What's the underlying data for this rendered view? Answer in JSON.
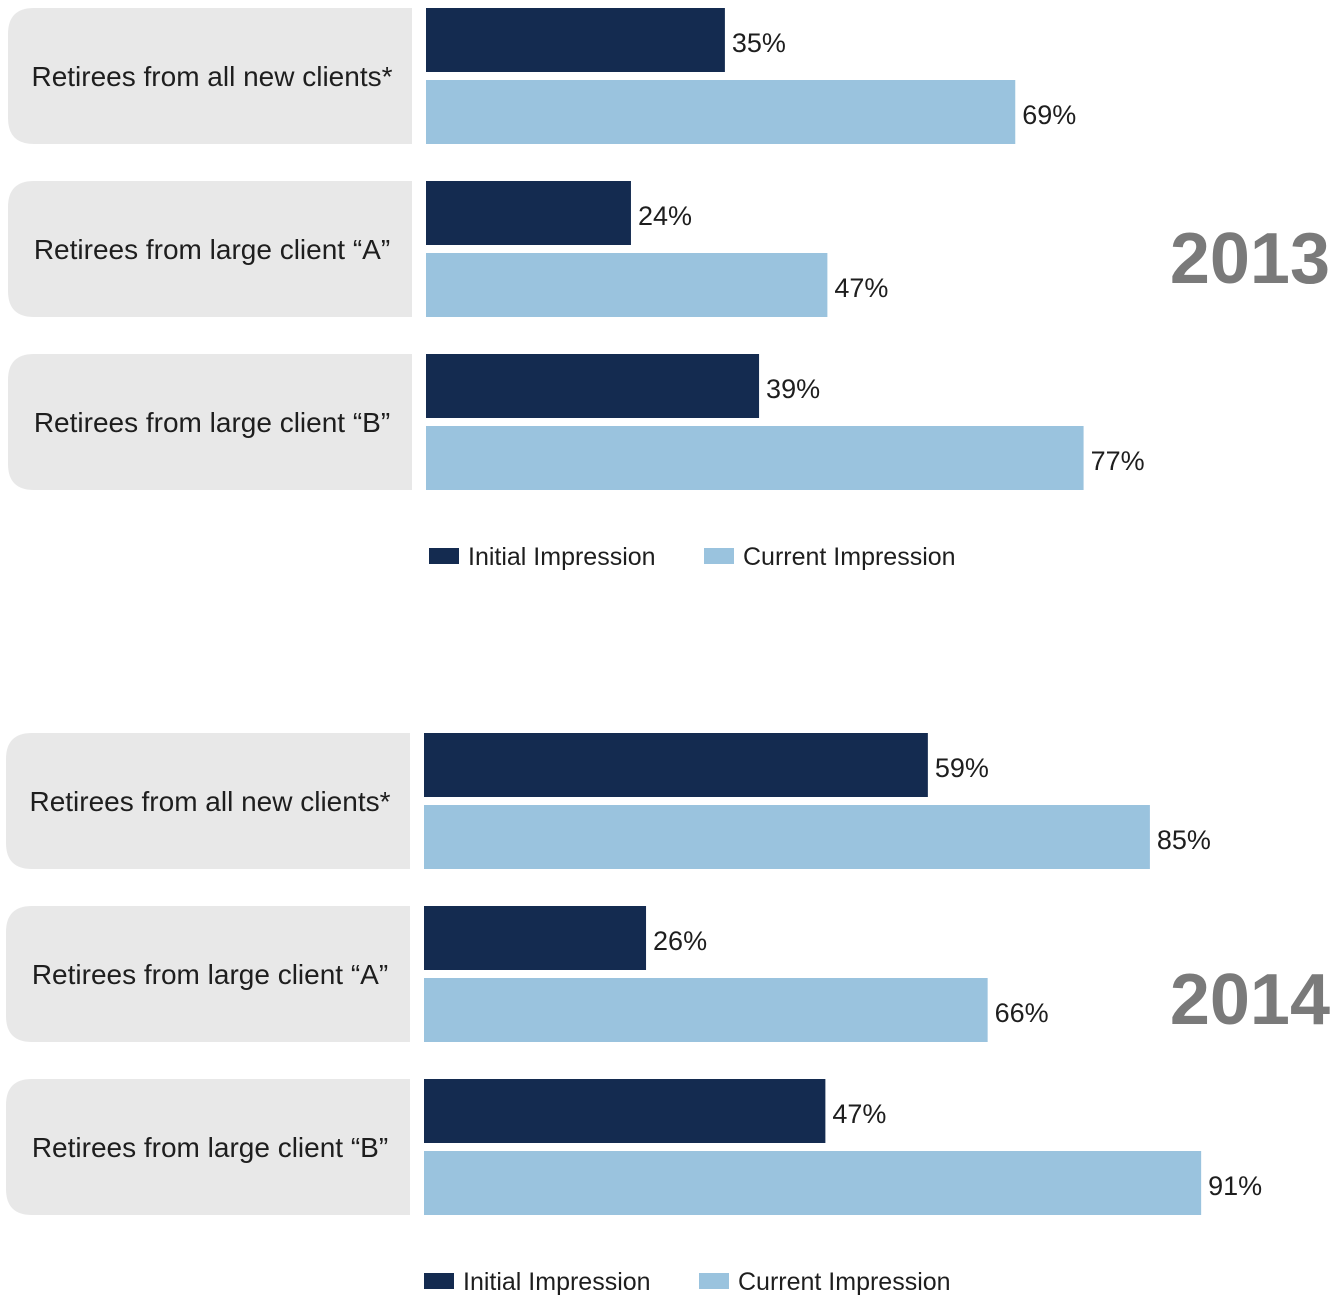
{
  "colors": {
    "initial": "#142b50",
    "current": "#9ac3de",
    "label_box": "#e8e8e8",
    "year_text": "#7a7a7a"
  },
  "chart_data": [
    {
      "type": "bar",
      "orientation": "horizontal",
      "year_label": "2013",
      "categories": [
        "Retirees from all new clients*",
        "Retirees from large client “A”",
        "Retirees from large client “B”"
      ],
      "series": [
        {
          "name": "Initial Impression",
          "values": [
            35,
            24,
            39
          ],
          "labels": [
            "35%",
            "24%",
            "39%"
          ]
        },
        {
          "name": "Current Impression",
          "values": [
            69,
            47,
            77
          ],
          "labels": [
            "69%",
            "47%",
            "77%"
          ]
        }
      ],
      "unit": "%",
      "xlim": [
        0,
        100
      ],
      "grid": false,
      "legend_position": "bottom"
    },
    {
      "type": "bar",
      "orientation": "horizontal",
      "year_label": "2014",
      "categories": [
        "Retirees from all new clients*",
        "Retirees from large client “A”",
        "Retirees from large client “B”"
      ],
      "series": [
        {
          "name": "Initial Impression",
          "values": [
            59,
            26,
            47
          ],
          "labels": [
            "59%",
            "26%",
            "47%"
          ]
        },
        {
          "name": "Current Impression",
          "values": [
            85,
            66,
            91
          ],
          "labels": [
            "85%",
            "66%",
            "91%"
          ]
        }
      ],
      "unit": "%",
      "xlim": [
        0,
        100
      ],
      "grid": false,
      "legend_position": "bottom"
    }
  ]
}
